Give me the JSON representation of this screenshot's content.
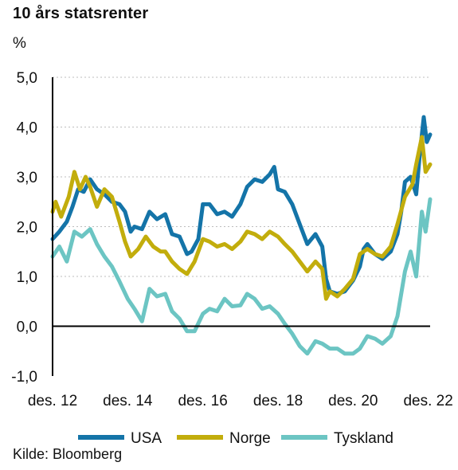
{
  "header": {
    "title": "10 års statsrenter",
    "unit": "%"
  },
  "footer": {
    "source": "Kilde: Bloomberg"
  },
  "colors": {
    "USA": "#1474a8",
    "Norge": "#c2ad0c",
    "Tyskland": "#6cc5c3",
    "grid": "#bdbdbd",
    "axis": "#000000"
  },
  "chart_data": {
    "type": "line",
    "title": "10 års statsrenter",
    "ylabel": "%",
    "xlabel": "",
    "ylim": [
      -1.0,
      5.0
    ],
    "xlim": [
      2012.92,
      2022.97
    ],
    "yticks": [
      -1.0,
      0.0,
      1.0,
      2.0,
      3.0,
      4.0,
      5.0
    ],
    "ytick_labels": [
      "-1,0",
      "0,0",
      "1,0",
      "2,0",
      "3,0",
      "4,0",
      "5,0"
    ],
    "xticks": [
      2012.92,
      2014.92,
      2016.92,
      2018.92,
      2020.92,
      2022.92
    ],
    "xtick_labels": [
      "des. 12",
      "des. 14",
      "des. 16",
      "des. 18",
      "des. 20",
      "des. 22"
    ],
    "grid": "horizontal dotted",
    "legend_position": "bottom",
    "series": [
      {
        "name": "USA",
        "x": [
          2012.92,
          2013.1,
          2013.3,
          2013.45,
          2013.6,
          2013.75,
          2013.92,
          2014.1,
          2014.3,
          2014.5,
          2014.7,
          2014.85,
          2015.0,
          2015.1,
          2015.3,
          2015.5,
          2015.7,
          2015.92,
          2016.1,
          2016.3,
          2016.5,
          2016.62,
          2016.8,
          2016.92,
          2017.1,
          2017.3,
          2017.5,
          2017.7,
          2017.92,
          2018.1,
          2018.3,
          2018.5,
          2018.7,
          2018.82,
          2018.92,
          2019.1,
          2019.3,
          2019.5,
          2019.7,
          2019.92,
          2020.1,
          2020.2,
          2020.3,
          2020.5,
          2020.7,
          2020.92,
          2021.1,
          2021.2,
          2021.3,
          2021.5,
          2021.7,
          2021.92,
          2022.1,
          2022.2,
          2022.3,
          2022.45,
          2022.6,
          2022.7,
          2022.8,
          2022.88,
          2022.97
        ],
        "y": [
          1.75,
          1.9,
          2.1,
          2.4,
          2.75,
          2.7,
          2.95,
          2.75,
          2.65,
          2.5,
          2.45,
          2.3,
          1.9,
          2.0,
          1.95,
          2.3,
          2.15,
          2.25,
          1.85,
          1.8,
          1.45,
          1.5,
          1.75,
          2.45,
          2.45,
          2.25,
          2.3,
          2.2,
          2.45,
          2.8,
          2.95,
          2.9,
          3.05,
          3.2,
          2.75,
          2.7,
          2.45,
          2.05,
          1.65,
          1.85,
          1.6,
          0.95,
          0.7,
          0.65,
          0.7,
          0.92,
          1.2,
          1.55,
          1.65,
          1.45,
          1.35,
          1.5,
          1.85,
          2.3,
          2.9,
          3.0,
          2.65,
          3.5,
          4.2,
          3.7,
          3.85
        ]
      },
      {
        "name": "Norge",
        "x": [
          2012.92,
          2013.0,
          2013.15,
          2013.35,
          2013.5,
          2013.65,
          2013.8,
          2013.92,
          2014.1,
          2014.3,
          2014.5,
          2014.7,
          2014.85,
          2015.0,
          2015.2,
          2015.4,
          2015.6,
          2015.8,
          2015.92,
          2016.1,
          2016.3,
          2016.5,
          2016.7,
          2016.92,
          2017.1,
          2017.3,
          2017.5,
          2017.7,
          2017.92,
          2018.1,
          2018.3,
          2018.5,
          2018.7,
          2018.92,
          2019.1,
          2019.3,
          2019.5,
          2019.7,
          2019.92,
          2020.1,
          2020.2,
          2020.3,
          2020.5,
          2020.7,
          2020.92,
          2021.1,
          2021.3,
          2021.5,
          2021.7,
          2021.92,
          2022.1,
          2022.3,
          2022.5,
          2022.6,
          2022.75,
          2022.85,
          2022.97
        ],
        "y": [
          2.3,
          2.5,
          2.2,
          2.6,
          3.1,
          2.75,
          3.0,
          2.8,
          2.4,
          2.75,
          2.6,
          2.1,
          1.7,
          1.4,
          1.55,
          1.8,
          1.6,
          1.5,
          1.5,
          1.3,
          1.15,
          1.05,
          1.3,
          1.75,
          1.7,
          1.6,
          1.65,
          1.55,
          1.7,
          1.9,
          1.85,
          1.75,
          1.9,
          1.8,
          1.65,
          1.5,
          1.3,
          1.1,
          1.3,
          1.15,
          0.55,
          0.7,
          0.6,
          0.75,
          0.95,
          1.45,
          1.55,
          1.45,
          1.4,
          1.6,
          2.05,
          2.6,
          2.85,
          3.25,
          3.8,
          3.1,
          3.25
        ]
      },
      {
        "name": "Tyskland",
        "x": [
          2012.92,
          2013.1,
          2013.3,
          2013.5,
          2013.7,
          2013.92,
          2014.1,
          2014.3,
          2014.5,
          2014.7,
          2014.92,
          2015.1,
          2015.3,
          2015.5,
          2015.7,
          2015.92,
          2016.1,
          2016.3,
          2016.5,
          2016.7,
          2016.92,
          2017.1,
          2017.3,
          2017.5,
          2017.7,
          2017.92,
          2018.1,
          2018.3,
          2018.5,
          2018.7,
          2018.92,
          2019.1,
          2019.3,
          2019.5,
          2019.7,
          2019.92,
          2020.1,
          2020.3,
          2020.5,
          2020.7,
          2020.92,
          2021.1,
          2021.3,
          2021.5,
          2021.7,
          2021.92,
          2022.1,
          2022.3,
          2022.45,
          2022.6,
          2022.75,
          2022.85,
          2022.97
        ],
        "y": [
          1.4,
          1.6,
          1.3,
          1.9,
          1.8,
          1.95,
          1.65,
          1.4,
          1.2,
          0.9,
          0.55,
          0.35,
          0.1,
          0.75,
          0.6,
          0.65,
          0.3,
          0.15,
          -0.1,
          -0.1,
          0.25,
          0.35,
          0.3,
          0.55,
          0.4,
          0.42,
          0.65,
          0.55,
          0.35,
          0.4,
          0.25,
          0.05,
          -0.15,
          -0.4,
          -0.55,
          -0.3,
          -0.35,
          -0.45,
          -0.45,
          -0.55,
          -0.55,
          -0.45,
          -0.2,
          -0.25,
          -0.35,
          -0.2,
          0.2,
          1.1,
          1.5,
          1.0,
          2.3,
          1.9,
          2.55
        ]
      }
    ]
  }
}
